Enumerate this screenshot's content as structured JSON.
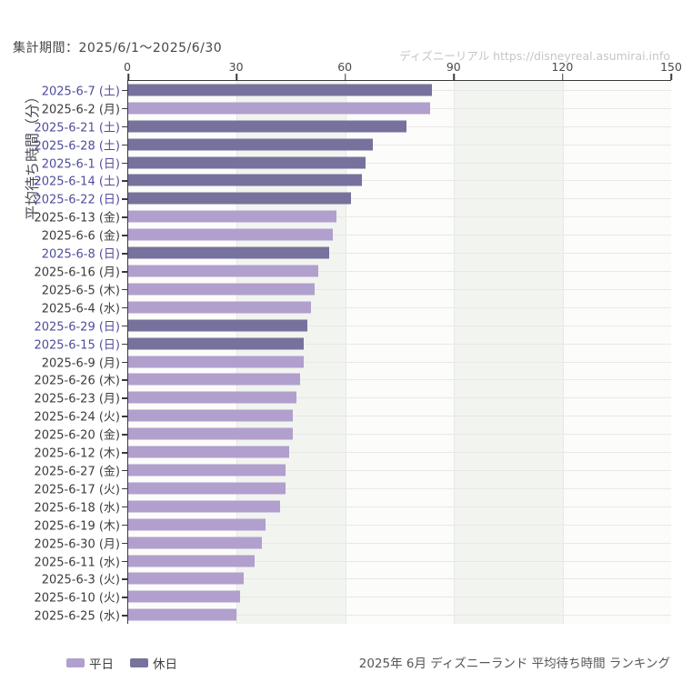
{
  "ui": {
    "period": "集計期間：2025/6/1～2025/6/30",
    "watermark": "ディズニーリアル https://disneyreal.asumirai.info",
    "footer_title": "2025年 6月 ディズニーランド 平均待ち時間 ランキング",
    "legend_weekday": "平日",
    "legend_holiday": "休日"
  },
  "colors": {
    "weekday_bar": "#b19fce",
    "holiday_bar": "#76729d",
    "weekend_label_text": "#504d9d",
    "weekday_label_text": "#3c3c3c",
    "band_shaded": "#f2f4f0",
    "band_plain": "#fcfdfa",
    "axis": "#3a3a3a",
    "gridline": "#e8e8e8"
  },
  "chart_data": {
    "type": "bar",
    "orientation": "horizontal",
    "title": "2025年 6月 ディズニーランド 平均待ち時間 ランキング",
    "ylabel": "平均待ち時間（分）",
    "xlabel": "",
    "xlim": [
      0,
      150
    ],
    "x_ticks": [
      0,
      30,
      60,
      90,
      120,
      150
    ],
    "grid": true,
    "legend_position": "bottom-left",
    "legend": [
      {
        "label": "平日",
        "color": "#b19fce"
      },
      {
        "label": "休日",
        "color": "#76729d"
      }
    ],
    "unit": "分",
    "series_note": "average wait time in minutes, ranked descending",
    "categories": [
      "2025-6-7 (土)",
      "2025-6-2 (月)",
      "2025-6-21 (土)",
      "2025-6-28 (土)",
      "2025-6-1 (日)",
      "2025-6-14 (土)",
      "2025-6-22 (日)",
      "2025-6-13 (金)",
      "2025-6-6 (金)",
      "2025-6-8 (日)",
      "2025-6-16 (月)",
      "2025-6-5 (木)",
      "2025-6-4 (水)",
      "2025-6-29 (日)",
      "2025-6-15 (日)",
      "2025-6-9 (月)",
      "2025-6-26 (木)",
      "2025-6-23 (月)",
      "2025-6-24 (火)",
      "2025-6-20 (金)",
      "2025-6-12 (木)",
      "2025-6-27 (金)",
      "2025-6-17 (火)",
      "2025-6-18 (水)",
      "2025-6-19 (木)",
      "2025-6-30 (月)",
      "2025-6-11 (水)",
      "2025-6-3 (火)",
      "2025-6-10 (火)",
      "2025-6-25 (水)"
    ],
    "values": [
      84,
      83.5,
      77,
      67.5,
      65.5,
      64.5,
      61.5,
      57.5,
      56.5,
      55.5,
      52.5,
      51.5,
      50.5,
      49.5,
      48.5,
      48.5,
      47.5,
      46.5,
      45.5,
      45.5,
      44.5,
      43.5,
      43.5,
      42,
      38,
      37,
      35,
      32,
      31,
      30
    ],
    "day_types": [
      "holiday",
      "weekday",
      "holiday",
      "holiday",
      "holiday",
      "holiday",
      "holiday",
      "weekday",
      "weekday",
      "holiday",
      "weekday",
      "weekday",
      "weekday",
      "holiday",
      "holiday",
      "weekday",
      "weekday",
      "weekday",
      "weekday",
      "weekday",
      "weekday",
      "weekday",
      "weekday",
      "weekday",
      "weekday",
      "weekday",
      "weekday",
      "weekday",
      "weekday",
      "weekday"
    ]
  }
}
